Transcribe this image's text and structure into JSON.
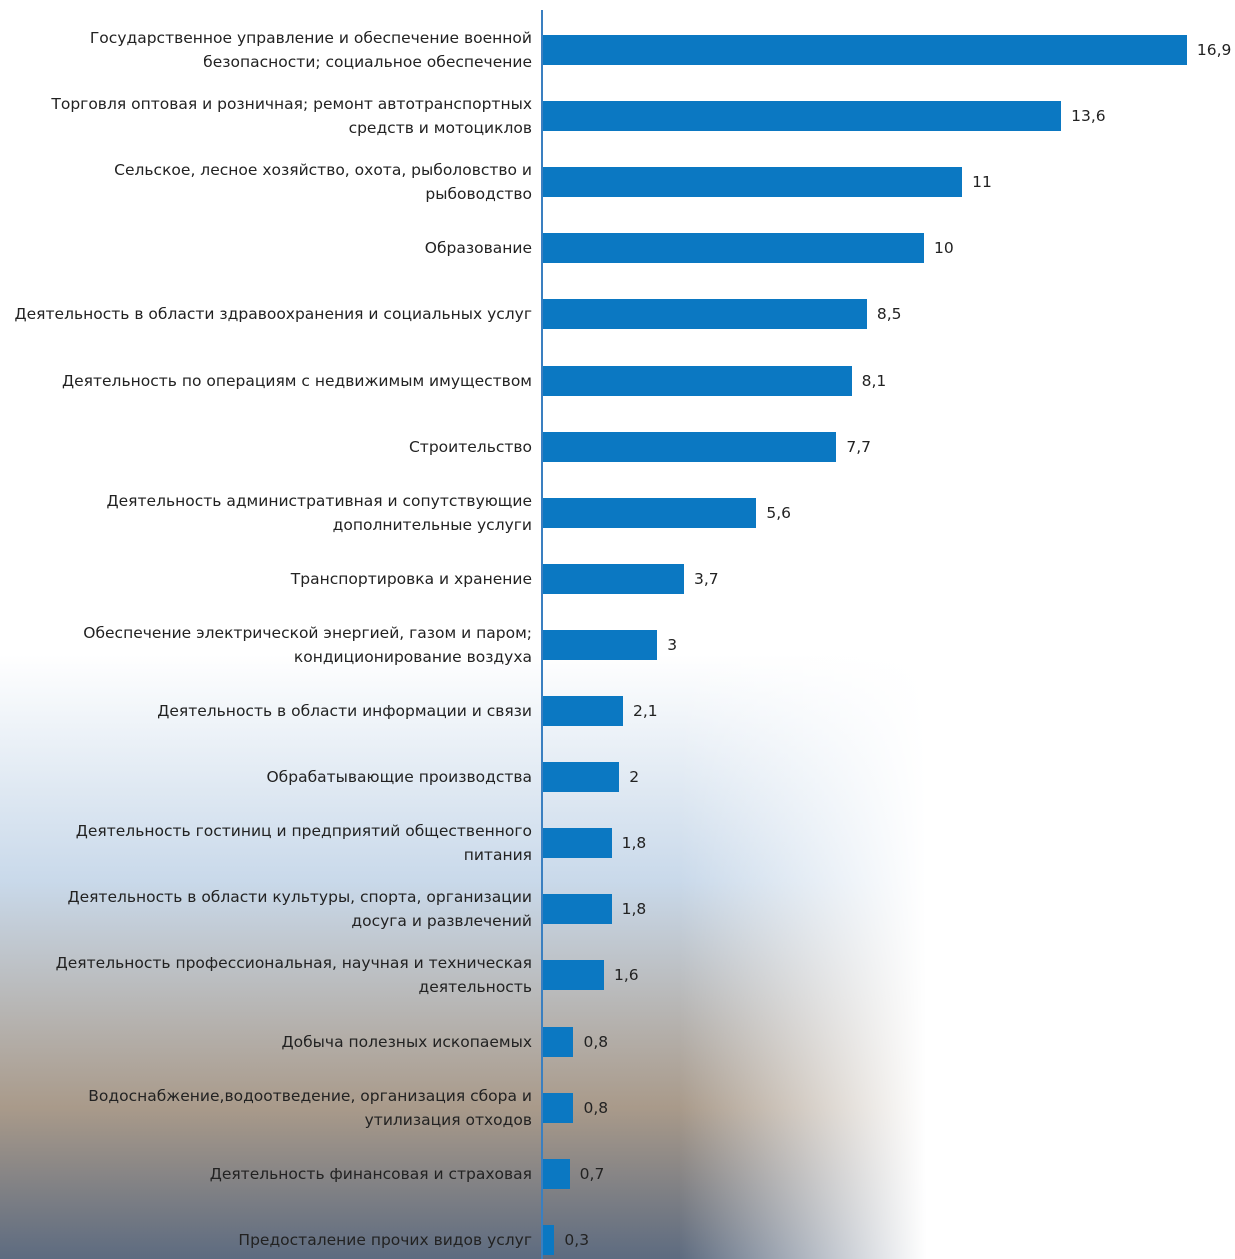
{
  "chart_data": {
    "type": "bar",
    "orientation": "horizontal",
    "color": "#0b78c2",
    "categories": [
      "Государственное управление и обеспечение военной безопасности; социальное обеспечение",
      "Торговля оптовая и розничная; ремонт автотранспортных средств и мотоциклов",
      "Сельское, лесное хозяйство, охота, рыболовство и рыбоводство",
      "Образование",
      "Деятельность в области здравоохранения и социальных услуг",
      "Деятельность по операциям с недвижимым имуществом",
      "Строительство",
      "Деятельность административная и сопутствующие дополнительные услуги",
      "Транспортировка и хранение",
      "Обеспечение электрической энергией, газом и паром; кондиционирование воздуха",
      "Деятельность в области информации и связи",
      "Обрабатывающие производства",
      "Деятельность гостиниц и предприятий общественного питания",
      "Деятельность в области культуры, спорта, организации досуга и развлечений",
      "Деятельность профессиональная, научная и техническая деятельность",
      "Добыча полезных ископаемых",
      "Водоснабжение,водоотведение, организация сбора и утилизация отходов",
      "Деятельность финансовая и страховая",
      "Предосталение прочих видов услуг"
    ],
    "values": [
      16.9,
      13.6,
      11,
      10,
      8.5,
      8.1,
      7.7,
      5.6,
      3.7,
      3,
      2.1,
      2,
      1.8,
      1.8,
      1.6,
      0.8,
      0.8,
      0.7,
      0.3
    ],
    "value_labels": [
      "16,9",
      "13,6",
      "11",
      "10",
      "8,5",
      "8,1",
      "7,7",
      "5,6",
      "3,7",
      "3",
      "2,1",
      "2",
      "1,8",
      "1,8",
      "1,6",
      "0,8",
      "0,8",
      "0,7",
      "0,3"
    ]
  }
}
